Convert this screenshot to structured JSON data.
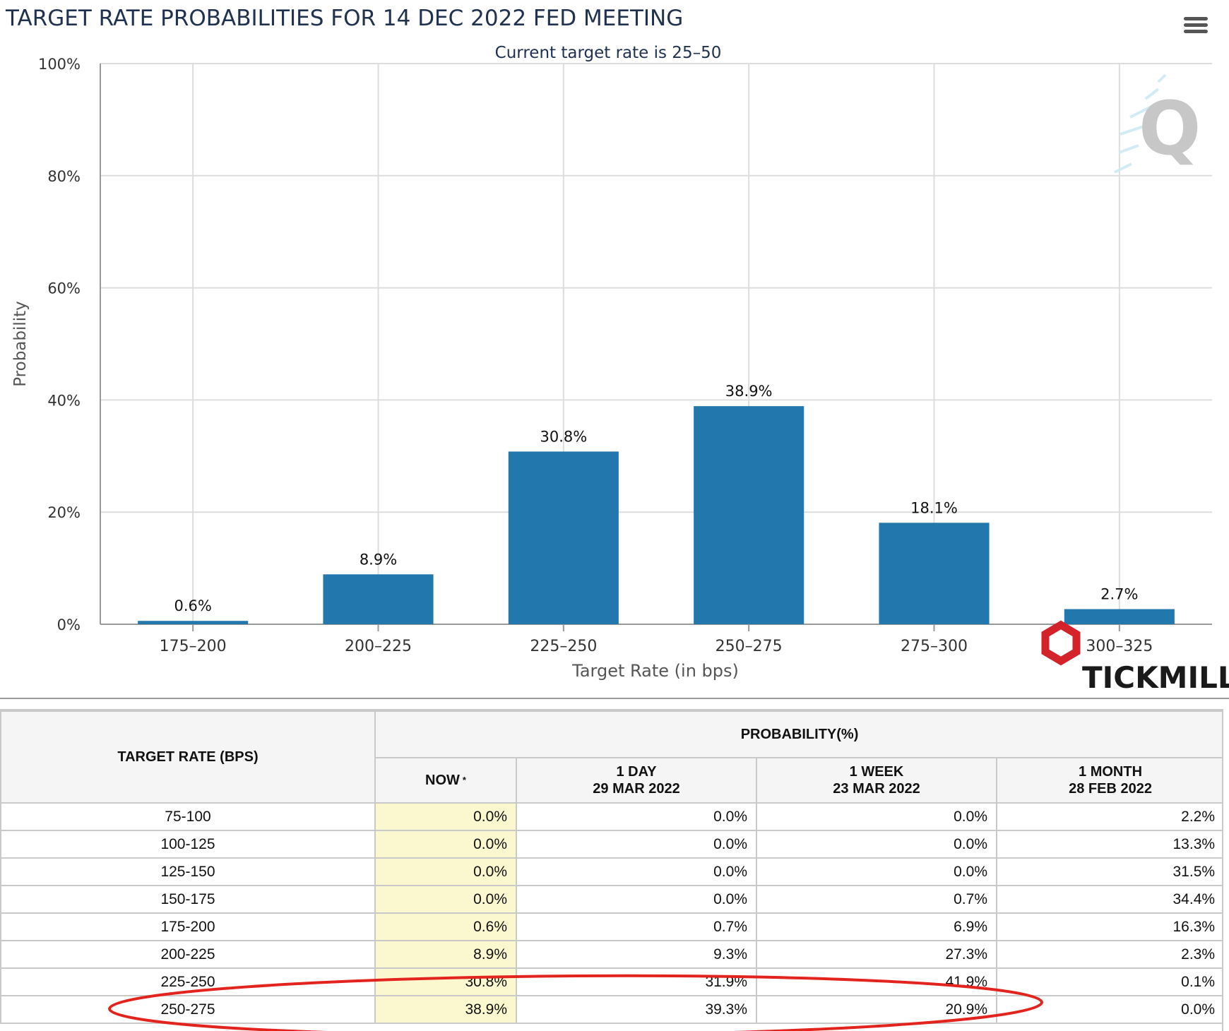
{
  "chart_data": {
    "type": "bar",
    "title": "TARGET RATE PROBABILITIES FOR 14 DEC 2022 FED MEETING",
    "subtitle": "Current target rate is 25–50",
    "xlabel": "Target Rate (in bps)",
    "ylabel": "Probability",
    "categories": [
      "175–200",
      "200–225",
      "225–250",
      "250–275",
      "275–300",
      "300–325"
    ],
    "values": [
      0.6,
      8.9,
      30.8,
      38.9,
      18.1,
      2.7
    ],
    "data_labels": [
      "0.6%",
      "8.9%",
      "30.8%",
      "38.9%",
      "18.1%",
      "2.7%"
    ],
    "ylim": [
      0,
      100
    ],
    "yticks": [
      0,
      20,
      40,
      60,
      80,
      100
    ],
    "ytick_labels": [
      "0%",
      "20%",
      "40%",
      "60%",
      "80%",
      "100%"
    ],
    "grid": true,
    "bar_color": "#2277ad"
  },
  "branding": {
    "logo_text": "TICKMILL",
    "logo_color": "#d3222a",
    "watermark": "Q"
  },
  "colors": {
    "title": "#20324f",
    "axis_text": "#333333",
    "grid": "#dddddd",
    "now_column": "#fbf8d0",
    "highlight": "#e3241e"
  },
  "table": {
    "rate_header": "TARGET RATE (BPS)",
    "group_header": "PROBABILITY(%)",
    "columns": [
      {
        "line1": "NOW",
        "line2": "",
        "asterisk": "*"
      },
      {
        "line1": "1 DAY",
        "line2": "29 MAR 2022"
      },
      {
        "line1": "1 WEEK",
        "line2": "23 MAR 2022"
      },
      {
        "line1": "1 MONTH",
        "line2": "28 FEB 2022"
      }
    ],
    "rows": [
      {
        "rate": "75-100",
        "now": "0.0%",
        "day": "0.0%",
        "week": "0.0%",
        "month": "2.2%"
      },
      {
        "rate": "100-125",
        "now": "0.0%",
        "day": "0.0%",
        "week": "0.0%",
        "month": "13.3%"
      },
      {
        "rate": "125-150",
        "now": "0.0%",
        "day": "0.0%",
        "week": "0.0%",
        "month": "31.5%"
      },
      {
        "rate": "150-175",
        "now": "0.0%",
        "day": "0.0%",
        "week": "0.7%",
        "month": "34.4%"
      },
      {
        "rate": "175-200",
        "now": "0.6%",
        "day": "0.7%",
        "week": "6.9%",
        "month": "16.3%"
      },
      {
        "rate": "200-225",
        "now": "8.9%",
        "day": "9.3%",
        "week": "27.3%",
        "month": "2.3%"
      },
      {
        "rate": "225-250",
        "now": "30.8%",
        "day": "31.9%",
        "week": "41.9%",
        "month": "0.1%"
      },
      {
        "rate": "250-275",
        "now": "38.9%",
        "day": "39.3%",
        "week": "20.9%",
        "month": "0.0%"
      }
    ]
  }
}
